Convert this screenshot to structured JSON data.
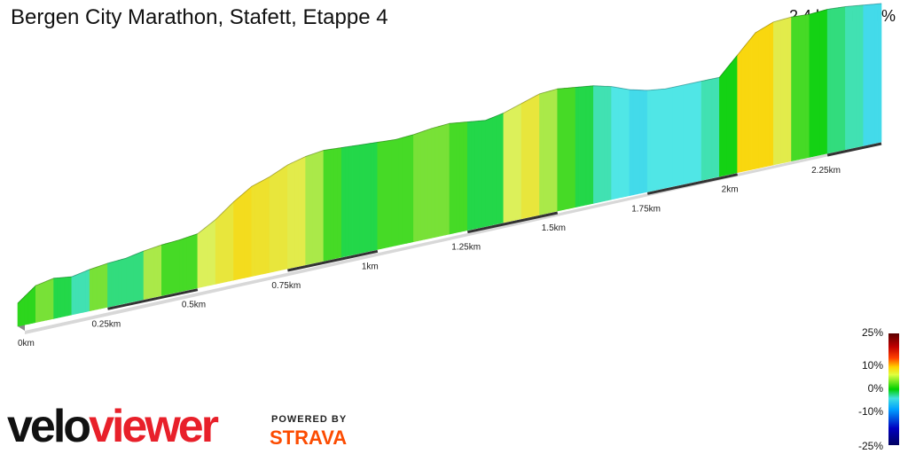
{
  "header": {
    "title": "Bergen City Marathon, Stafett, Etappe 4",
    "summary": "2.4 km at 0.1%"
  },
  "legend": {
    "labels": [
      "25%",
      "10%",
      "0%",
      "-10%",
      "-25%"
    ]
  },
  "branding": {
    "logo_part1": "velo",
    "logo_part2": "viewer",
    "powered_by": "POWERED BY",
    "strava": "STRAVA"
  },
  "chart_data": {
    "type": "area",
    "title": "Bergen City Marathon, Stafett, Etappe 4",
    "distance_km": 2.4,
    "average_grade_pct": 0.1,
    "x_tick_labels": [
      "0km",
      "0.25km",
      "0.5km",
      "0.75km",
      "1km",
      "1.25km",
      "1.5km",
      "1.75km",
      "2km",
      "2.25km"
    ],
    "x_ticks_km": [
      0,
      0.25,
      0.5,
      0.75,
      1.0,
      1.25,
      1.5,
      1.75,
      2.0,
      2.25
    ],
    "profile": {
      "distance_km": [
        0,
        0.05,
        0.1,
        0.15,
        0.2,
        0.25,
        0.3,
        0.35,
        0.4,
        0.45,
        0.5,
        0.55,
        0.6,
        0.65,
        0.7,
        0.75,
        0.8,
        0.85,
        0.9,
        0.95,
        1.0,
        1.05,
        1.1,
        1.15,
        1.2,
        1.25,
        1.3,
        1.35,
        1.4,
        1.45,
        1.5,
        1.55,
        1.6,
        1.65,
        1.7,
        1.75,
        1.8,
        1.85,
        1.9,
        1.95,
        2.0,
        2.05,
        2.1,
        2.15,
        2.2,
        2.25,
        2.3,
        2.35,
        2.4
      ],
      "relative_height": [
        0.0,
        0.12,
        0.15,
        0.13,
        0.16,
        0.18,
        0.19,
        0.22,
        0.24,
        0.25,
        0.27,
        0.36,
        0.48,
        0.58,
        0.63,
        0.7,
        0.74,
        0.76,
        0.75,
        0.74,
        0.73,
        0.72,
        0.73,
        0.75,
        0.76,
        0.74,
        0.72,
        0.75,
        0.8,
        0.85,
        0.86,
        0.84,
        0.82,
        0.78,
        0.72,
        0.68,
        0.66,
        0.66,
        0.66,
        0.66,
        0.82,
        0.98,
        1.04,
        1.05,
        1.04,
        1.05,
        1.04,
        1.02,
        1.0
      ],
      "grade_pct": [
        0.5,
        2,
        -1,
        -3,
        2,
        -2,
        -2,
        3,
        1,
        1,
        4,
        6,
        8,
        7,
        6,
        5,
        3,
        1,
        -1,
        -1,
        1,
        1,
        2,
        2,
        1,
        -1,
        -1,
        4,
        6,
        3,
        1,
        -1,
        -3,
        -4,
        -5,
        -4,
        -4,
        -4,
        -3,
        0,
        9,
        9,
        5,
        1,
        0,
        -2,
        -3,
        -5,
        -6
      ]
    },
    "grade_scale_pct": [
      -25,
      -10,
      0,
      10,
      25
    ],
    "legend_placement": "bottom-right"
  }
}
